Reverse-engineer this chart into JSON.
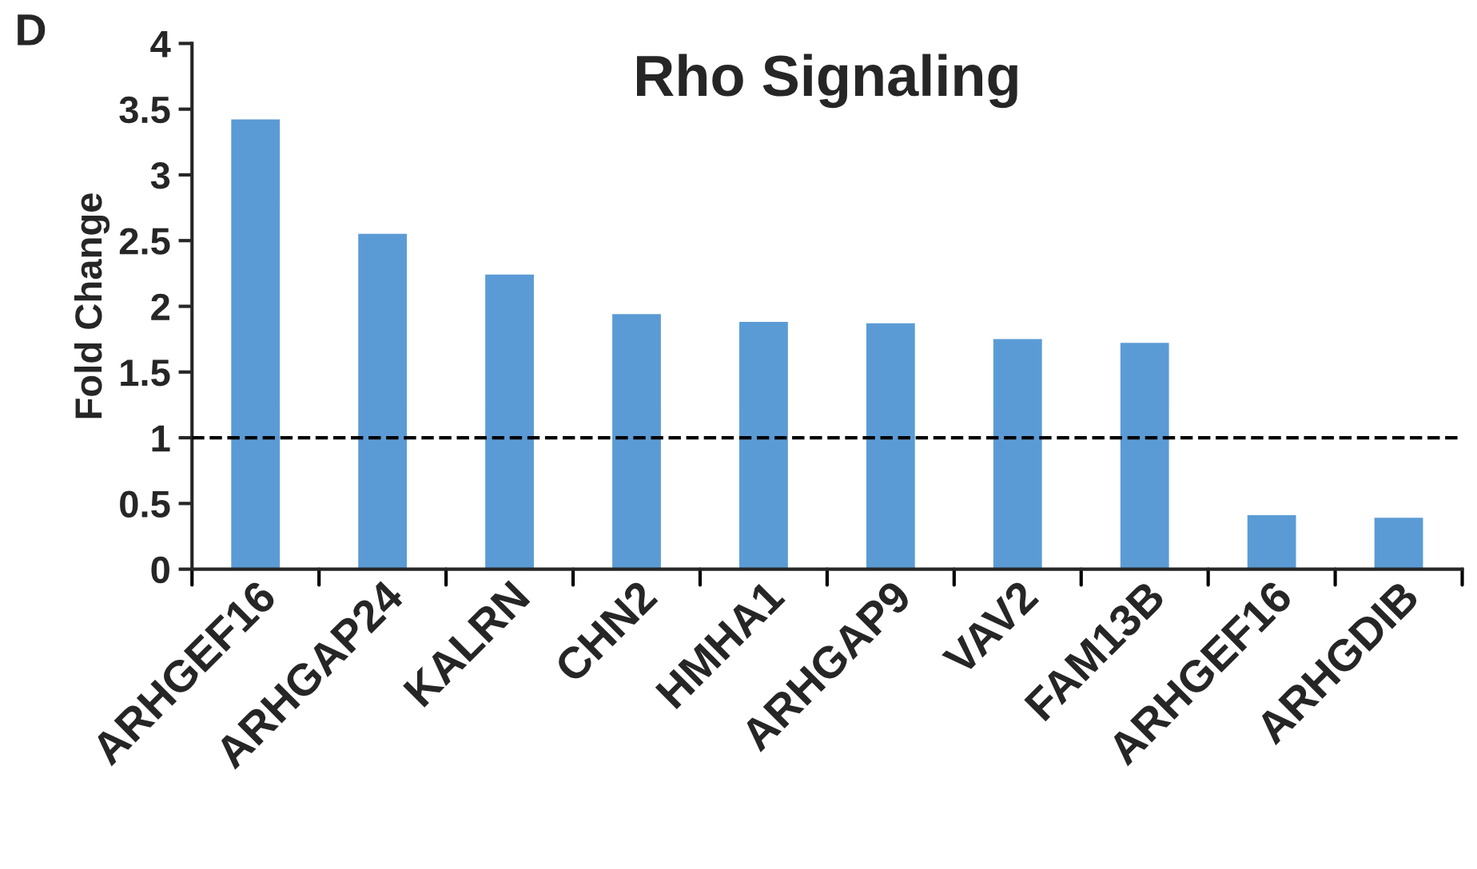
{
  "chart_data": {
    "type": "bar",
    "title": "Rho Signaling",
    "ylabel": "Fold Change",
    "annotations": [
      "D"
    ],
    "categories": [
      "ARHGEF16",
      "ARHGAP24",
      "KALRN",
      "CHN2",
      "HMHA1",
      "ARHGAP9",
      "VAV2",
      "FAM13B",
      "ARHGEF16",
      "ARHGDIB"
    ],
    "values": [
      3.43,
      2.56,
      2.25,
      1.95,
      1.89,
      1.88,
      1.76,
      1.73,
      0.42,
      0.4
    ],
    "color": "#5b9bd5",
    "ylim": [
      0,
      4
    ],
    "yticks": [
      0,
      0.5,
      1,
      1.5,
      2,
      2.5,
      3,
      3.5,
      4
    ],
    "ref_lines": [
      {
        "axis": "y",
        "value": 1,
        "color": "#000000",
        "line_style": "dashed"
      }
    ],
    "grid": false,
    "legend": false
  }
}
